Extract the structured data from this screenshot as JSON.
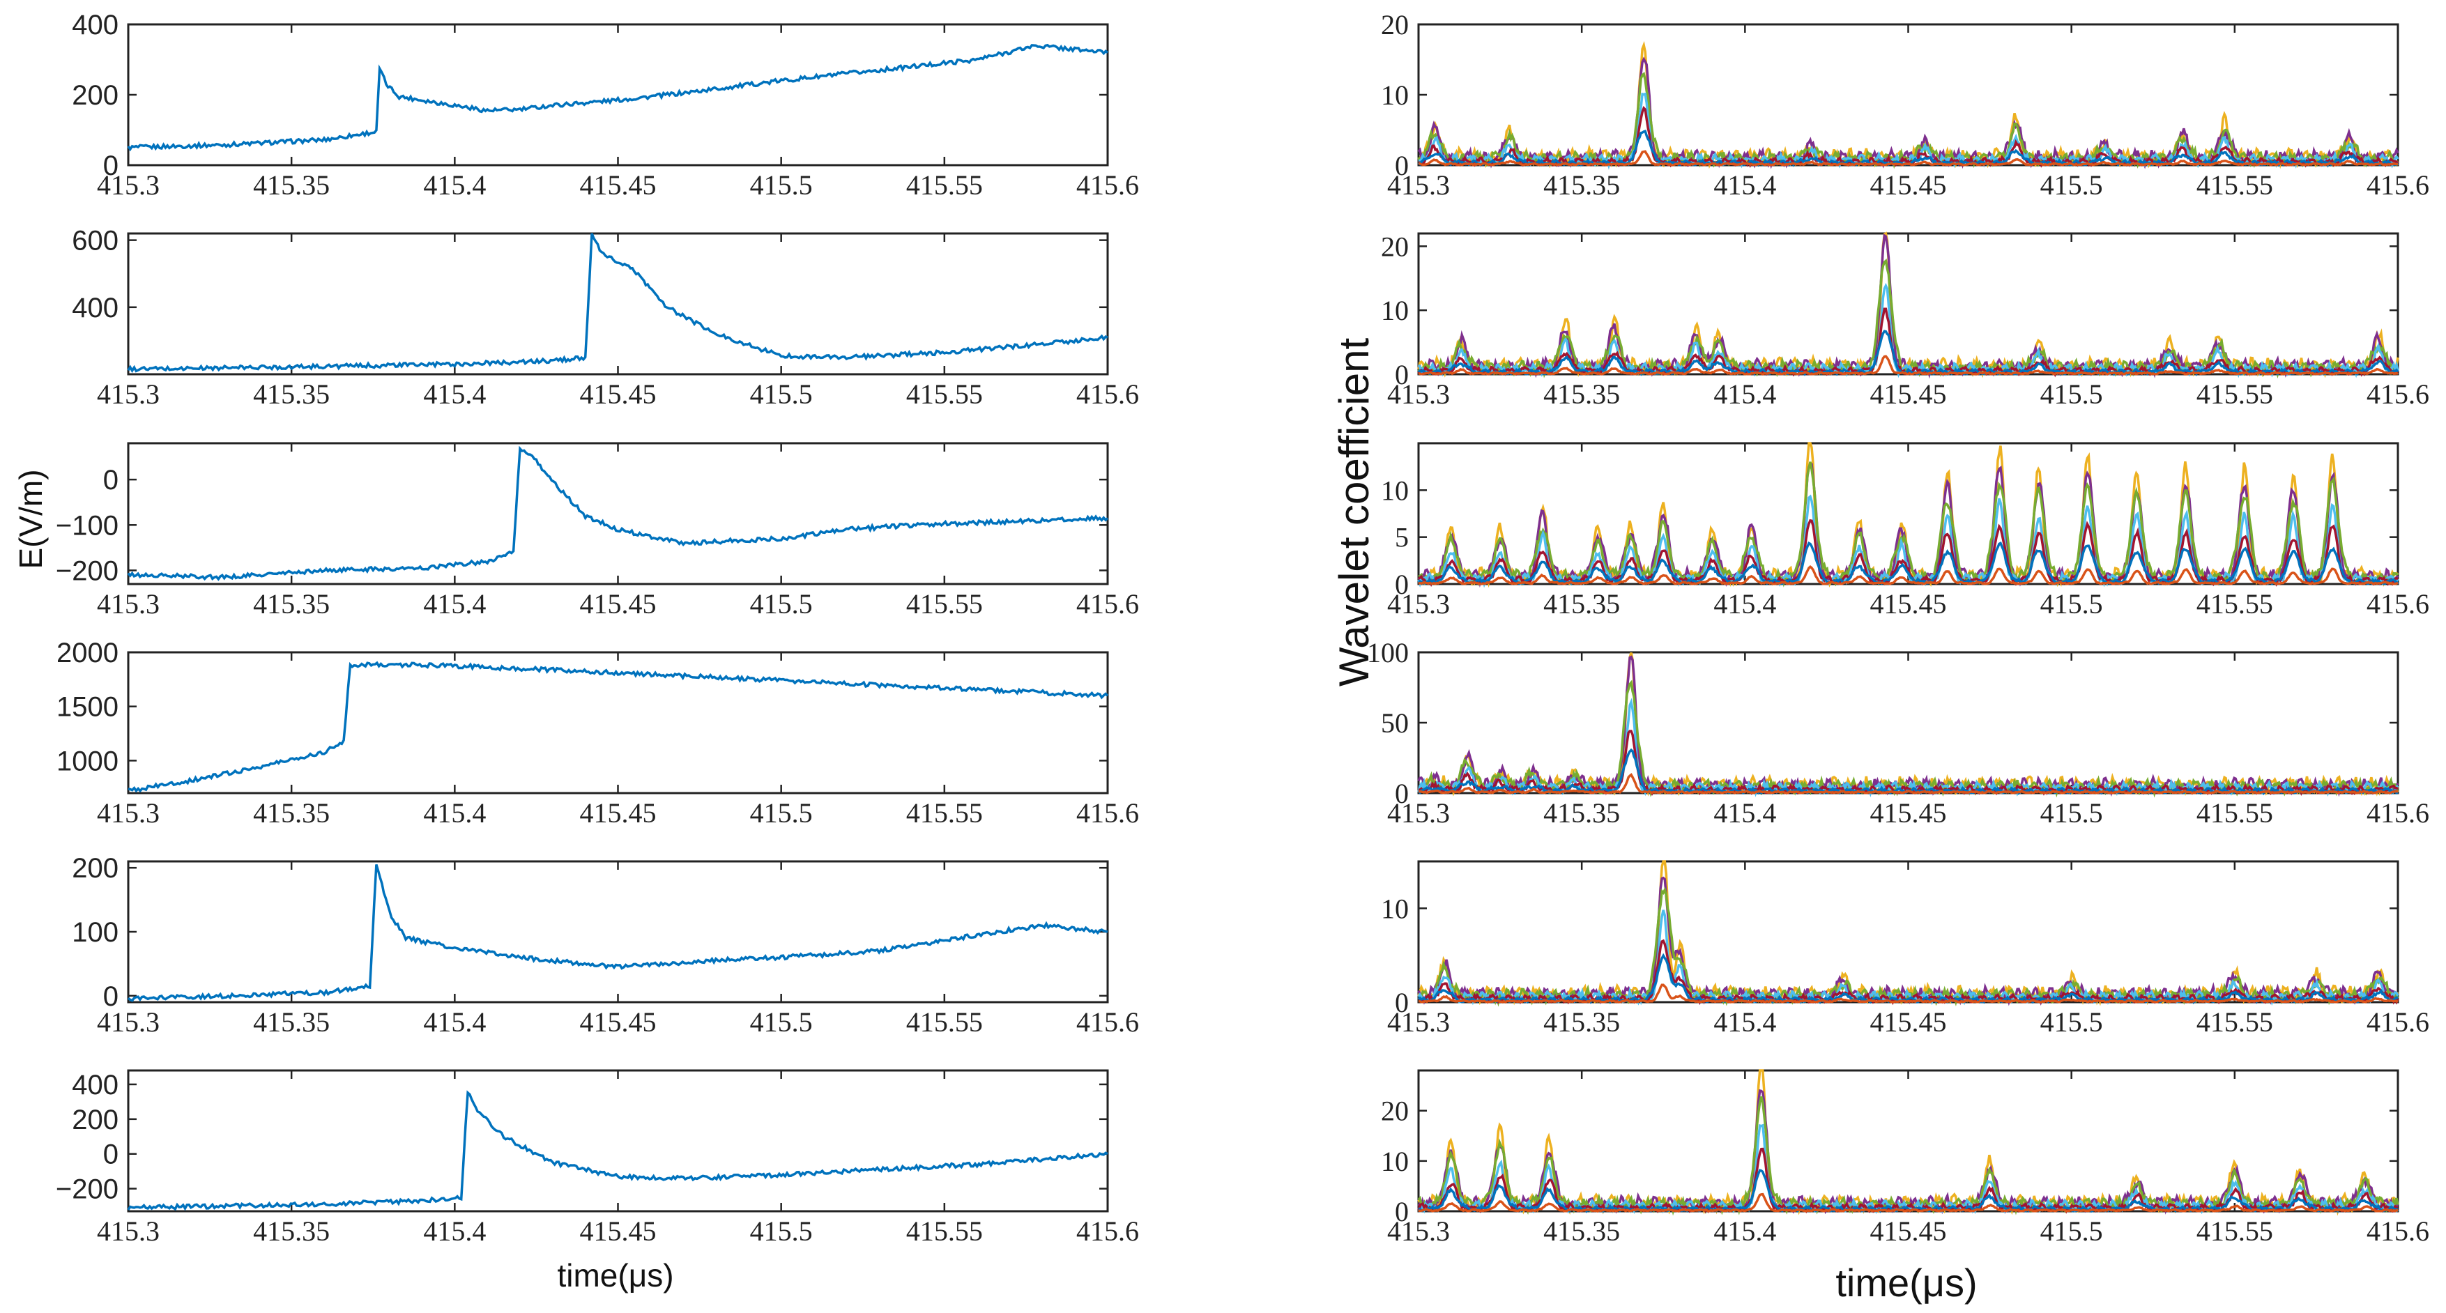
{
  "figure": {
    "left_ylabel": "E(V/m)",
    "left_xlabel": "time(μs)",
    "right_ylabel": "Wavelet coefficient",
    "right_xlabel": "time(μs)"
  },
  "chart_data": [
    {
      "type": "line",
      "panel": "left-1",
      "xlim": [
        415.3,
        415.6
      ],
      "ylim": [
        0,
        400
      ],
      "xticks": [
        "415.3",
        "415.35",
        "415.4",
        "415.45",
        "415.5",
        "415.55",
        "415.6"
      ],
      "yticks": [
        {
          "v": 0,
          "label": "0"
        },
        {
          "v": 200,
          "label": "200"
        },
        {
          "v": 400,
          "label": "400"
        }
      ],
      "series": [
        {
          "name": "E",
          "color": "#0072BD",
          "points": [
            [
              415.3,
              50
            ],
            [
              415.33,
              58
            ],
            [
              415.36,
              72
            ],
            [
              415.376,
              95
            ],
            [
              415.377,
              275
            ],
            [
              415.379,
              230
            ],
            [
              415.383,
              195
            ],
            [
              415.39,
              185
            ],
            [
              415.4,
              170
            ],
            [
              415.41,
              155
            ],
            [
              415.42,
              158
            ],
            [
              415.43,
              170
            ],
            [
              415.45,
              185
            ],
            [
              415.47,
              205
            ],
            [
              415.5,
              240
            ],
            [
              415.53,
              270
            ],
            [
              415.56,
              300
            ],
            [
              415.578,
              340
            ],
            [
              415.6,
              320
            ]
          ]
        }
      ]
    },
    {
      "type": "line",
      "panel": "left-2",
      "xlim": [
        415.3,
        415.6
      ],
      "ylim": [
        200,
        620
      ],
      "xticks": [
        "415.3",
        "415.35",
        "415.4",
        "415.45",
        "415.5",
        "415.55",
        "415.6"
      ],
      "yticks": [
        {
          "v": 400,
          "label": "400"
        },
        {
          "v": 600,
          "label": "600"
        }
      ],
      "series": [
        {
          "name": "E",
          "color": "#0072BD",
          "points": [
            [
              415.3,
              215
            ],
            [
              415.35,
              222
            ],
            [
              415.4,
              230
            ],
            [
              415.43,
              240
            ],
            [
              415.44,
              250
            ],
            [
              415.442,
              615
            ],
            [
              415.445,
              560
            ],
            [
              415.455,
              510
            ],
            [
              415.465,
              400
            ],
            [
              415.48,
              320
            ],
            [
              415.5,
              255
            ],
            [
              415.52,
              250
            ],
            [
              415.55,
              265
            ],
            [
              415.58,
              290
            ],
            [
              415.6,
              310
            ]
          ]
        }
      ]
    },
    {
      "type": "line",
      "panel": "left-3",
      "xlim": [
        415.3,
        415.6
      ],
      "ylim": [
        -230,
        80
      ],
      "xticks": [
        "415.3",
        "415.35",
        "415.4",
        "415.45",
        "415.5",
        "415.55",
        "415.6"
      ],
      "yticks": [
        {
          "v": 0,
          "label": "0"
        },
        {
          "v": -100,
          "label": "−100"
        },
        {
          "v": -200,
          "label": "−200"
        }
      ],
      "series": [
        {
          "name": "E",
          "color": "#0072BD",
          "points": [
            [
              415.3,
              -210
            ],
            [
              415.33,
              -215
            ],
            [
              415.36,
              -200
            ],
            [
              415.39,
              -195
            ],
            [
              415.41,
              -180
            ],
            [
              415.418,
              -160
            ],
            [
              415.42,
              70
            ],
            [
              415.425,
              40
            ],
            [
              415.432,
              -20
            ],
            [
              415.44,
              -80
            ],
            [
              415.45,
              -110
            ],
            [
              415.47,
              -140
            ],
            [
              415.5,
              -130
            ],
            [
              415.52,
              -110
            ],
            [
              415.54,
              -100
            ],
            [
              415.56,
              -95
            ],
            [
              415.58,
              -90
            ],
            [
              415.6,
              -85
            ]
          ]
        }
      ]
    },
    {
      "type": "line",
      "panel": "left-4",
      "xlim": [
        415.3,
        415.6
      ],
      "ylim": [
        700,
        2000
      ],
      "xticks": [
        "415.3",
        "415.35",
        "415.4",
        "415.45",
        "415.5",
        "415.55",
        "415.6"
      ],
      "yticks": [
        {
          "v": 1000,
          "label": "1000"
        },
        {
          "v": 1500,
          "label": "1500"
        },
        {
          "v": 2000,
          "label": "2000"
        }
      ],
      "series": [
        {
          "name": "E",
          "color": "#0072BD",
          "points": [
            [
              415.3,
              720
            ],
            [
              415.32,
              820
            ],
            [
              415.34,
              940
            ],
            [
              415.36,
              1080
            ],
            [
              415.366,
              1180
            ],
            [
              415.368,
              1880
            ],
            [
              415.375,
              1890
            ],
            [
              415.4,
              1875
            ],
            [
              415.45,
              1810
            ],
            [
              415.5,
              1740
            ],
            [
              415.55,
              1670
            ],
            [
              415.6,
              1600
            ]
          ]
        }
      ]
    },
    {
      "type": "line",
      "panel": "left-5",
      "xlim": [
        415.3,
        415.6
      ],
      "ylim": [
        -10,
        210
      ],
      "xticks": [
        "415.3",
        "415.35",
        "415.4",
        "415.45",
        "415.5",
        "415.55",
        "415.6"
      ],
      "yticks": [
        {
          "v": 0,
          "label": "0"
        },
        {
          "v": 100,
          "label": "100"
        },
        {
          "v": 200,
          "label": "200"
        }
      ],
      "series": [
        {
          "name": "E",
          "color": "#0072BD",
          "points": [
            [
              415.3,
              -5
            ],
            [
              415.33,
              0
            ],
            [
              415.36,
              5
            ],
            [
              415.374,
              15
            ],
            [
              415.376,
              205
            ],
            [
              415.38,
              130
            ],
            [
              415.385,
              90
            ],
            [
              415.4,
              75
            ],
            [
              415.42,
              60
            ],
            [
              415.45,
              45
            ],
            [
              415.48,
              55
            ],
            [
              415.5,
              60
            ],
            [
              415.53,
              70
            ],
            [
              415.56,
              95
            ],
            [
              415.58,
              110
            ],
            [
              415.6,
              100
            ]
          ]
        }
      ]
    },
    {
      "type": "line",
      "panel": "left-6",
      "xlim": [
        415.3,
        415.6
      ],
      "ylim": [
        -330,
        480
      ],
      "xticks": [
        "415.3",
        "415.35",
        "415.4",
        "415.45",
        "415.5",
        "415.55",
        "415.6"
      ],
      "yticks": [
        {
          "v": 400,
          "label": "400"
        },
        {
          "v": 200,
          "label": "200"
        },
        {
          "v": 0,
          "label": "0"
        },
        {
          "v": -200,
          "label": "−200"
        }
      ],
      "series": [
        {
          "name": "E",
          "color": "#0072BD",
          "points": [
            [
              415.3,
              -310
            ],
            [
              415.33,
              -300
            ],
            [
              415.36,
              -290
            ],
            [
              415.39,
              -270
            ],
            [
              415.402,
              -250
            ],
            [
              415.404,
              360
            ],
            [
              415.407,
              250
            ],
            [
              415.415,
              100
            ],
            [
              415.43,
              -50
            ],
            [
              415.45,
              -130
            ],
            [
              415.47,
              -140
            ],
            [
              415.5,
              -120
            ],
            [
              415.53,
              -90
            ],
            [
              415.56,
              -60
            ],
            [
              415.58,
              -30
            ],
            [
              415.6,
              0
            ]
          ]
        }
      ]
    },
    {
      "type": "line",
      "panel": "right-1",
      "xlim": [
        415.3,
        415.6
      ],
      "ylim": [
        0,
        20
      ],
      "xticks": [
        "415.3",
        "415.35",
        "415.4",
        "415.45",
        "415.5",
        "415.55",
        "415.6"
      ],
      "yticks": [
        {
          "v": 0,
          "label": "0"
        },
        {
          "v": 10,
          "label": "10"
        },
        {
          "v": 20,
          "label": "20"
        }
      ],
      "peaks": [
        [
          415.305,
          4.6
        ],
        [
          415.328,
          3.6
        ],
        [
          415.369,
          16
        ],
        [
          415.42,
          2.0
        ],
        [
          415.455,
          2.5
        ],
        [
          415.483,
          5.5
        ],
        [
          415.51,
          2.2
        ],
        [
          415.534,
          3.8
        ],
        [
          415.547,
          5.0
        ],
        [
          415.585,
          3.1
        ]
      ]
    },
    {
      "type": "line",
      "panel": "right-2",
      "xlim": [
        415.3,
        415.6
      ],
      "ylim": [
        0,
        22
      ],
      "xticks": [
        "415.3",
        "415.35",
        "415.4",
        "415.45",
        "415.5",
        "415.55",
        "415.6"
      ],
      "yticks": [
        {
          "v": 0,
          "label": "0"
        },
        {
          "v": 10,
          "label": "10"
        },
        {
          "v": 20,
          "label": "20"
        }
      ],
      "peaks": [
        [
          415.313,
          4.5
        ],
        [
          415.345,
          7.0
        ],
        [
          415.36,
          7.0
        ],
        [
          415.385,
          6.0
        ],
        [
          415.392,
          5.0
        ],
        [
          415.443,
          22
        ],
        [
          415.49,
          3.5
        ],
        [
          415.53,
          3.5
        ],
        [
          415.545,
          4.5
        ],
        [
          415.594,
          5.0
        ]
      ]
    },
    {
      "type": "line",
      "panel": "right-3",
      "xlim": [
        415.3,
        415.6
      ],
      "ylim": [
        0,
        15
      ],
      "xticks": [
        "415.3",
        "415.35",
        "415.4",
        "415.45",
        "415.5",
        "415.55",
        "415.6"
      ],
      "yticks": [
        {
          "v": 0,
          "label": "0"
        },
        {
          "v": 5,
          "label": "5"
        },
        {
          "v": 10,
          "label": "10"
        }
      ],
      "peaks": [
        [
          415.31,
          5.0
        ],
        [
          415.325,
          5.2
        ],
        [
          415.338,
          7.2
        ],
        [
          415.355,
          5.0
        ],
        [
          415.365,
          5.6
        ],
        [
          415.375,
          7.4
        ],
        [
          415.39,
          5.0
        ],
        [
          415.402,
          5.8
        ],
        [
          415.42,
          15
        ],
        [
          415.435,
          6.0
        ],
        [
          415.448,
          5.5
        ],
        [
          415.462,
          11.5
        ],
        [
          415.478,
          13.5
        ],
        [
          415.49,
          11.5
        ],
        [
          415.505,
          13.0
        ],
        [
          415.52,
          11.3
        ],
        [
          415.535,
          12.0
        ],
        [
          415.553,
          11.5
        ],
        [
          415.568,
          10.5
        ],
        [
          415.58,
          13.0
        ]
      ]
    },
    {
      "type": "line",
      "panel": "right-4",
      "xlim": [
        415.3,
        415.6
      ],
      "ylim": [
        0,
        100
      ],
      "xticks": [
        "415.3",
        "415.35",
        "415.4",
        "415.45",
        "415.5",
        "415.55",
        "415.6"
      ],
      "yticks": [
        {
          "v": 0,
          "label": "0"
        },
        {
          "v": 50,
          "label": "50"
        },
        {
          "v": 100,
          "label": "100"
        }
      ],
      "peaks": [
        [
          415.305,
          5.0
        ],
        [
          415.315,
          22
        ],
        [
          415.325,
          10
        ],
        [
          415.335,
          12
        ],
        [
          415.348,
          9
        ],
        [
          415.365,
          98
        ]
      ]
    },
    {
      "type": "line",
      "panel": "right-5",
      "xlim": [
        415.3,
        415.6
      ],
      "ylim": [
        0,
        15
      ],
      "xticks": [
        "415.3",
        "415.35",
        "415.4",
        "415.45",
        "415.5",
        "415.55",
        "415.6"
      ],
      "yticks": [
        {
          "v": 0,
          "label": "0"
        },
        {
          "v": 10,
          "label": "10"
        }
      ],
      "peaks": [
        [
          415.308,
          3.7
        ],
        [
          415.375,
          15
        ],
        [
          415.38,
          5.0
        ],
        [
          415.43,
          1.8
        ],
        [
          415.5,
          1.6
        ],
        [
          415.55,
          2.2
        ],
        [
          415.575,
          2.0
        ],
        [
          415.594,
          2.5
        ]
      ]
    },
    {
      "type": "line",
      "panel": "right-6",
      "xlim": [
        415.3,
        415.6
      ],
      "ylim": [
        0,
        28
      ],
      "xticks": [
        "415.3",
        "415.35",
        "415.4",
        "415.45",
        "415.5",
        "415.55",
        "415.6"
      ],
      "yticks": [
        {
          "v": 0,
          "label": "0"
        },
        {
          "v": 10,
          "label": "10"
        },
        {
          "v": 20,
          "label": "20"
        }
      ],
      "peaks": [
        [
          415.31,
          12
        ],
        [
          415.325,
          15
        ],
        [
          415.34,
          12.5
        ],
        [
          415.405,
          28
        ],
        [
          415.475,
          8.5
        ],
        [
          415.52,
          5.0
        ],
        [
          415.55,
          8.0
        ],
        [
          415.57,
          6.5
        ],
        [
          415.59,
          6.0
        ]
      ]
    }
  ],
  "wavelet_colors": [
    "#EDB120",
    "#7E2F8E",
    "#77AC30",
    "#4DBEEE",
    "#A2142F",
    "#0072BD",
    "#D95319"
  ]
}
